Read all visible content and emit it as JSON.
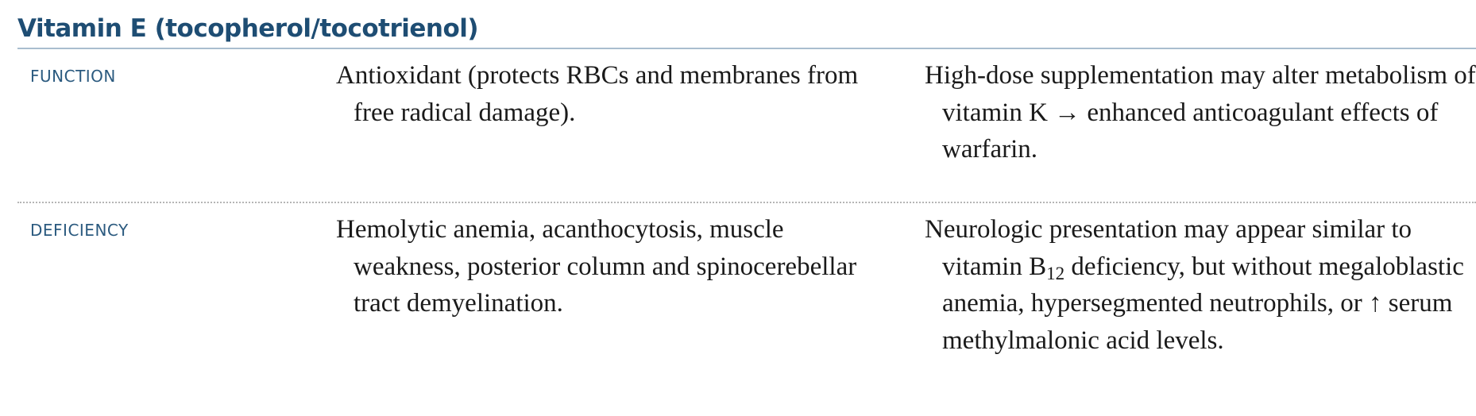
{
  "section": {
    "title": "Vitamin E (tocopherol/tocotrienol)"
  },
  "rows": [
    {
      "label": "FUNCTION",
      "description": "Antioxidant (protects RBCs and membranes from free radical damage).",
      "notes_before": "High-dose supplementation may alter metabolism of vitamin K",
      "notes_arrow": "→",
      "notes_after": "enhanced anticoagulant effects of warfarin."
    },
    {
      "label": "DEFICIENCY",
      "description": "Hemolytic anemia, acanthocytosis, muscle weakness, posterior column and spinocerebellar tract demyelination.",
      "notes_before": "Neurologic presentation may appear similar to vitamin B",
      "notes_subscript": "12",
      "notes_middle": "deficiency, but without megaloblastic anemia, hypersegmented neutrophils, or",
      "notes_arrow": "↑",
      "notes_after": "serum methylmalonic acid levels."
    }
  ]
}
